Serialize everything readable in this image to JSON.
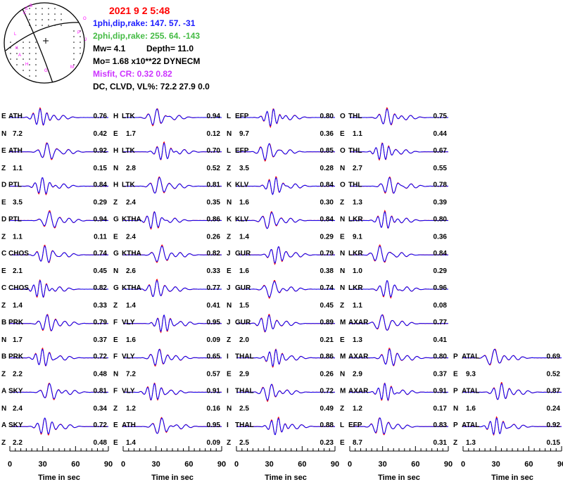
{
  "header": {
    "date": "2021  9  2    5:48",
    "plane1": "1phi,dip,rake: 147. 57.  -31",
    "plane2": "2phi,dip,rake: 255. 64. -143",
    "mw": "Mw=  4.1",
    "depth": "Depth=     11.0",
    "mo": "Mo=  1.68 x10**22 DYNECM",
    "misfit": "Misfit,  CR:      0.32      0.82",
    "dcclvd": "DC, CLVD, VL%:   72.2   27.9    0.0"
  },
  "colors": {
    "date": "#ff0000",
    "plane1": "#1a1aff",
    "plane2": "#44bb44",
    "misfit": "#cc33ff",
    "observed": "#ff0000",
    "synthetic": "#0000ff",
    "text": "#000000"
  },
  "beachball": {
    "station_labels": [
      "E",
      "B",
      "C",
      "L",
      "K",
      "A",
      "H",
      "G",
      "M",
      "O",
      "P",
      "J"
    ]
  },
  "axis": {
    "xlabel": "Time  in sec",
    "ticks": [
      "0",
      "30",
      "60",
      "90"
    ],
    "xlim": [
      0,
      90
    ]
  },
  "chart_data": {
    "type": "line",
    "xlabel": "Time  in sec",
    "xlim": [
      0,
      90
    ],
    "series": [
      "observed",
      "synthetic"
    ],
    "columns": [
      [
        {
          "code": "E",
          "sta": "ATH",
          "comp": "N",
          "dist": "7.2",
          "cc": "0.76",
          "amp": "0.42"
        },
        {
          "code": "E",
          "sta": "ATH",
          "comp": "Z",
          "dist": "1.1",
          "cc": "0.92",
          "amp": "0.15"
        },
        {
          "code": "D",
          "sta": "PTL",
          "comp": "E",
          "dist": "3.5",
          "cc": "0.84",
          "amp": "0.29"
        },
        {
          "code": "D",
          "sta": "PTL",
          "comp": "Z",
          "dist": "1.1",
          "cc": "0.94",
          "amp": "0.11"
        },
        {
          "code": "C",
          "sta": "CHOS",
          "comp": "E",
          "dist": "2.1",
          "cc": "0.74",
          "amp": "0.45"
        },
        {
          "code": "C",
          "sta": "CHOS",
          "comp": "Z",
          "dist": "1.4",
          "cc": "0.82",
          "amp": "0.33"
        },
        {
          "code": "B",
          "sta": "PRK",
          "comp": "N",
          "dist": "1.7",
          "cc": "0.79",
          "amp": "0.37"
        },
        {
          "code": "B",
          "sta": "PRK",
          "comp": "Z",
          "dist": "2.2",
          "cc": "0.72",
          "amp": "0.48"
        },
        {
          "code": "A",
          "sta": "SKY",
          "comp": "N",
          "dist": "2.4",
          "cc": "0.81",
          "amp": "0.34"
        },
        {
          "code": "A",
          "sta": "SKY",
          "comp": "Z",
          "dist": "2.2",
          "cc": "0.72",
          "amp": "0.48"
        }
      ],
      [
        {
          "code": "H",
          "sta": "LTK",
          "comp": "E",
          "dist": "1.7",
          "cc": "0.94",
          "amp": "0.12"
        },
        {
          "code": "H",
          "sta": "LTK",
          "comp": "N",
          "dist": "2.8",
          "cc": "0.70",
          "amp": "0.52"
        },
        {
          "code": "H",
          "sta": "LTK",
          "comp": "Z",
          "dist": "2.4",
          "cc": "0.81",
          "amp": "0.35"
        },
        {
          "code": "G",
          "sta": "KTHA",
          "comp": "E",
          "dist": "2.4",
          "cc": "0.86",
          "amp": "0.26"
        },
        {
          "code": "G",
          "sta": "KTHA",
          "comp": "N",
          "dist": "2.6",
          "cc": "0.82",
          "amp": "0.33"
        },
        {
          "code": "G",
          "sta": "KTHA",
          "comp": "Z",
          "dist": "1.4",
          "cc": "0.77",
          "amp": "0.41"
        },
        {
          "code": "F",
          "sta": "VLY",
          "comp": "E",
          "dist": "1.6",
          "cc": "0.95",
          "amp": "0.09"
        },
        {
          "code": "F",
          "sta": "VLY",
          "comp": "N",
          "dist": "7.2",
          "cc": "0.65",
          "amp": "0.57"
        },
        {
          "code": "F",
          "sta": "VLY",
          "comp": "Z",
          "dist": "1.2",
          "cc": "0.91",
          "amp": "0.16"
        },
        {
          "code": "E",
          "sta": "ATH",
          "comp": "E",
          "dist": "1.4",
          "cc": "0.95",
          "amp": "0.09"
        }
      ],
      [
        {
          "code": "L",
          "sta": "EFP",
          "comp": "N",
          "dist": "9.7",
          "cc": "0.80",
          "amp": "0.36"
        },
        {
          "code": "L",
          "sta": "EFP",
          "comp": "Z",
          "dist": "3.5",
          "cc": "0.85",
          "amp": "0.28"
        },
        {
          "code": "K",
          "sta": "KLV",
          "comp": "N",
          "dist": "1.6",
          "cc": "0.84",
          "amp": "0.30"
        },
        {
          "code": "K",
          "sta": "KLV",
          "comp": "Z",
          "dist": "1.4",
          "cc": "0.84",
          "amp": "0.29"
        },
        {
          "code": "J",
          "sta": "GUR",
          "comp": "E",
          "dist": "1.6",
          "cc": "0.79",
          "amp": "0.38"
        },
        {
          "code": "J",
          "sta": "GUR",
          "comp": "N",
          "dist": "1.5",
          "cc": "0.74",
          "amp": "0.45"
        },
        {
          "code": "J",
          "sta": "GUR",
          "comp": "Z",
          "dist": "2.0",
          "cc": "0.89",
          "amp": "0.21"
        },
        {
          "code": "I",
          "sta": "THAL",
          "comp": "E",
          "dist": "2.9",
          "cc": "0.86",
          "amp": "0.26"
        },
        {
          "code": "I",
          "sta": "THAL",
          "comp": "N",
          "dist": "2.5",
          "cc": "0.72",
          "amp": "0.49"
        },
        {
          "code": "I",
          "sta": "THAL",
          "comp": "Z",
          "dist": "2.5",
          "cc": "0.88",
          "amp": "0.23"
        }
      ],
      [
        {
          "code": "O",
          "sta": "THL",
          "comp": "E",
          "dist": "1.1",
          "cc": "0.75",
          "amp": "0.44"
        },
        {
          "code": "O",
          "sta": "THL",
          "comp": "N",
          "dist": "2.7",
          "cc": "0.67",
          "amp": "0.55"
        },
        {
          "code": "O",
          "sta": "THL",
          "comp": "Z",
          "dist": "1.3",
          "cc": "0.78",
          "amp": "0.39"
        },
        {
          "code": "N",
          "sta": "LKR",
          "comp": "E",
          "dist": "9.1",
          "cc": "0.80",
          "amp": "0.36"
        },
        {
          "code": "N",
          "sta": "LKR",
          "comp": "N",
          "dist": "1.0",
          "cc": "0.84",
          "amp": "0.29"
        },
        {
          "code": "N",
          "sta": "LKR",
          "comp": "Z",
          "dist": "1.1",
          "cc": "0.96",
          "amp": "0.08"
        },
        {
          "code": "M",
          "sta": "AXAR",
          "comp": "E",
          "dist": "1.3",
          "cc": "0.77",
          "amp": "0.41"
        },
        {
          "code": "M",
          "sta": "AXAR",
          "comp": "N",
          "dist": "2.9",
          "cc": "0.80",
          "amp": "0.37"
        },
        {
          "code": "M",
          "sta": "AXAR",
          "comp": "Z",
          "dist": "1.2",
          "cc": "0.91",
          "amp": "0.17"
        },
        {
          "code": "L",
          "sta": "EFP",
          "comp": "E",
          "dist": "8.7",
          "cc": "0.83",
          "amp": "0.31"
        }
      ],
      [
        null,
        null,
        null,
        null,
        null,
        null,
        null,
        {
          "code": "P",
          "sta": "ATAL",
          "comp": "E",
          "dist": "9.3",
          "cc": "0.69",
          "amp": "0.52"
        },
        {
          "code": "P",
          "sta": "ATAL",
          "comp": "N",
          "dist": "1.6",
          "cc": "0.87",
          "amp": "0.24"
        },
        {
          "code": "P",
          "sta": "ATAL",
          "comp": "Z",
          "dist": "1.3",
          "cc": "0.92",
          "amp": "0.15"
        }
      ]
    ]
  }
}
